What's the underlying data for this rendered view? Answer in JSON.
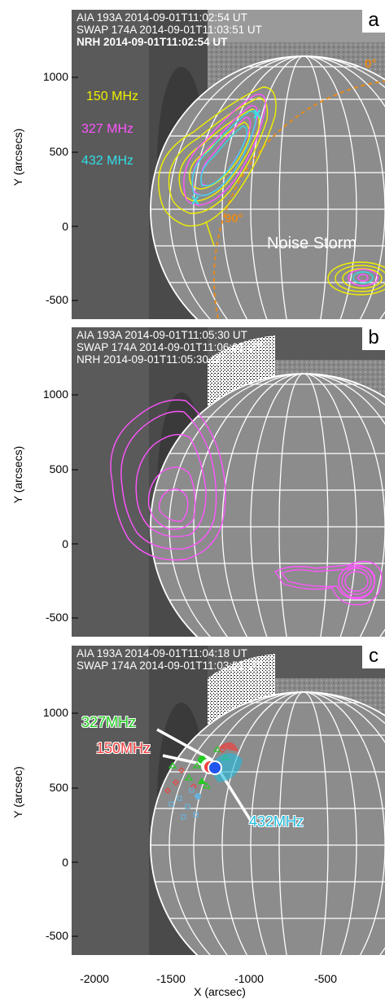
{
  "axes": {
    "y_label_top": "Y (arcsecs)",
    "y_label_mid": "Y (arcsecs)",
    "y_label_bottom": "Y (arcsec)",
    "x_label": "X (arcsec)",
    "y_ticks": [
      "1000",
      "500",
      "0",
      "-500"
    ],
    "x_ticks": [
      "-2000",
      "-1500",
      "-1000",
      "-500"
    ]
  },
  "panel_a": {
    "letter": "a",
    "header": [
      "AIA 193A 2014-09-01T11:02:54 UT",
      "SWAP 174A 2014-09-01T11:03:51 UT",
      "NRH 2014-09-01T11:02:54 UT"
    ],
    "freq_labels": [
      "150 MHz",
      "327 MHz",
      "432 MHz"
    ],
    "angle_0": "0°",
    "angle_90": "90°",
    "noise_storm": "Noise Storm",
    "x_marker": "x"
  },
  "panel_b": {
    "letter": "b",
    "header": [
      "AIA 193A 2014-09-01T11:05:30 UT",
      "SWAP 174A 2014-09-01T11:06:01 UT",
      "NRH 2014-09-01T11:05:30 UT"
    ]
  },
  "panel_c": {
    "letter": "c",
    "header": [
      "AIA 193A 2014-09-01T11:04:18 UT",
      "SWAP 174A 2014-09-01T11:03:51 UT"
    ],
    "freq_labels": [
      "327MHz",
      "150MHz",
      "432MHz"
    ]
  },
  "colors": {
    "f150": "#f0f000",
    "f327": "#ff55ff",
    "f432": "#33dde8",
    "c150": "#f04040",
    "c327": "#22cc22",
    "c432": "#22bbdd",
    "orange": "#e88a1a"
  }
}
